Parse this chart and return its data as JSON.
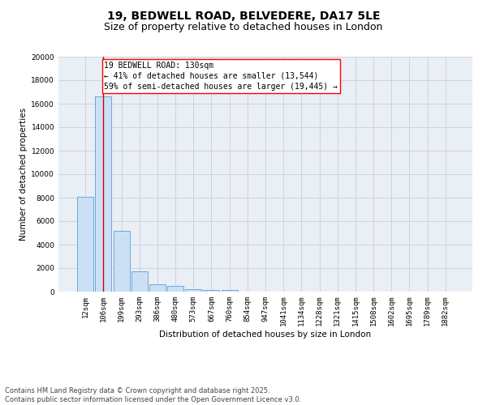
{
  "title_line1": "19, BEDWELL ROAD, BELVEDERE, DA17 5LE",
  "title_line2": "Size of property relative to detached houses in London",
  "xlabel": "Distribution of detached houses by size in London",
  "ylabel": "Number of detached properties",
  "categories": [
    "12sqm",
    "106sqm",
    "199sqm",
    "293sqm",
    "386sqm",
    "480sqm",
    "573sqm",
    "667sqm",
    "760sqm",
    "854sqm",
    "947sqm",
    "1041sqm",
    "1134sqm",
    "1228sqm",
    "1321sqm",
    "1415sqm",
    "1508sqm",
    "1602sqm",
    "1695sqm",
    "1789sqm",
    "1882sqm"
  ],
  "values": [
    8100,
    16600,
    5200,
    1750,
    620,
    480,
    200,
    160,
    120,
    0,
    0,
    0,
    0,
    0,
    0,
    0,
    0,
    0,
    0,
    0,
    0
  ],
  "bar_color": "#cce0f5",
  "bar_edge_color": "#5a9fd4",
  "grid_color": "#c8d0dc",
  "background_color": "#eaeef5",
  "vline_color": "#cc0000",
  "vline_x": 1.0,
  "annotation_line1": "19 BEDWELL ROAD: 130sqm",
  "annotation_line2": "← 41% of detached houses are smaller (13,544)",
  "annotation_line3": "59% of semi-detached houses are larger (19,445) →",
  "ylim": [
    0,
    20000
  ],
  "yticks": [
    0,
    2000,
    4000,
    6000,
    8000,
    10000,
    12000,
    14000,
    16000,
    18000,
    20000
  ],
  "footer_line1": "Contains HM Land Registry data © Crown copyright and database right 2025.",
  "footer_line2": "Contains public sector information licensed under the Open Government Licence v3.0.",
  "title_fontsize": 10,
  "subtitle_fontsize": 9,
  "axis_label_fontsize": 7.5,
  "tick_fontsize": 6.5,
  "annotation_fontsize": 7,
  "footer_fontsize": 6
}
